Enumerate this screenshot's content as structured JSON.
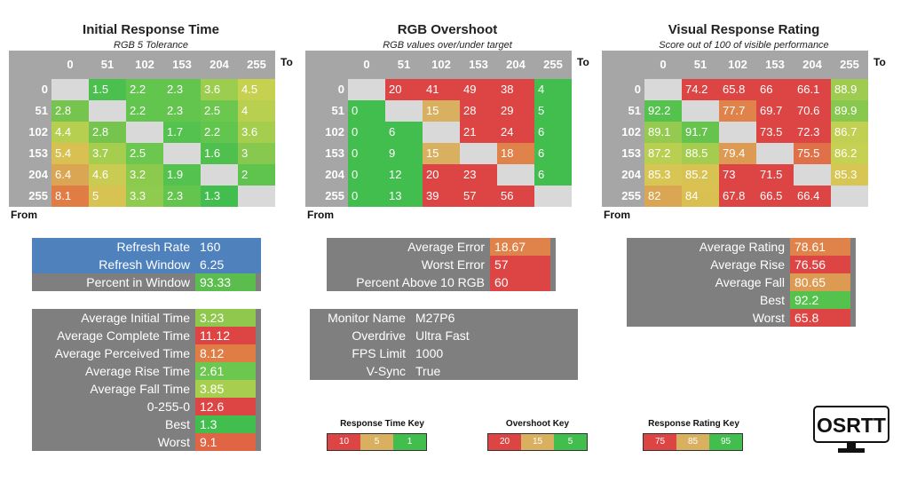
{
  "heatmaps": [
    {
      "title": "Initial Response Time",
      "subtitle": "RGB 5 Tolerance",
      "to_label": "To",
      "from_label": "From",
      "col_headers": [
        "0",
        "51",
        "102",
        "153",
        "204",
        "255"
      ],
      "row_headers": [
        "0",
        "51",
        "102",
        "153",
        "204",
        "255"
      ],
      "cells": [
        [
          null,
          "1.5",
          "2.2",
          "2.3",
          "3.6",
          "4.5"
        ],
        [
          "2.8",
          null,
          "2.2",
          "2.3",
          "2.5",
          "4"
        ],
        [
          "4.4",
          "2.8",
          null,
          "1.7",
          "2.2",
          "3.6"
        ],
        [
          "5.4",
          "3.7",
          "2.5",
          null,
          "1.6",
          "3"
        ],
        [
          "6.4",
          "4.6",
          "3.2",
          "1.9",
          null,
          "2"
        ],
        [
          "8.1",
          "5",
          "3.3",
          "2.3",
          "1.3",
          null
        ]
      ],
      "colors": [
        [
          "#d9d9d9",
          "#4cc04e",
          "#61c54e",
          "#63c54e",
          "#9ccd4f",
          "#c7d150"
        ],
        [
          "#74c44e",
          null,
          "#61c54e",
          "#63c54e",
          "#6cc74e",
          "#b9cf50"
        ],
        [
          "#b6cf50",
          "#74c44e",
          null,
          "#53c24e",
          "#61c54e",
          "#a5ce4f"
        ],
        [
          "#d8c052",
          "#a5ce4f",
          "#6cc74e",
          null,
          "#4fc04e",
          "#87c94e"
        ],
        [
          "#dba653",
          "#c9cb52",
          "#8cca4e",
          "#54c24e",
          null,
          "#5ec44e"
        ],
        [
          "#e07d45",
          "#d6c352",
          "#8fcb4e",
          "#63c54e",
          "#42be4e",
          "#d9d9d9"
        ]
      ]
    },
    {
      "title": "RGB Overshoot",
      "subtitle": "RGB values over/under target",
      "to_label": "To",
      "from_label": "From",
      "col_headers": [
        "0",
        "51",
        "102",
        "153",
        "204",
        "255"
      ],
      "row_headers": [
        "0",
        "51",
        "102",
        "153",
        "204",
        "255"
      ],
      "cells": [
        [
          null,
          "20",
          "41",
          "49",
          "38",
          "4"
        ],
        [
          "0",
          null,
          "15",
          "28",
          "29",
          "5"
        ],
        [
          "0",
          "6",
          null,
          "21",
          "24",
          "6"
        ],
        [
          "0",
          "9",
          "15",
          null,
          "18",
          "6"
        ],
        [
          "0",
          "12",
          "20",
          "23",
          null,
          "6"
        ],
        [
          "0",
          "13",
          "39",
          "57",
          "56",
          null
        ]
      ],
      "colors": [
        [
          "#d9d9d9",
          "#dd4444",
          "#dd4444",
          "#dd4444",
          "#dd4444",
          "#42be4e"
        ],
        [
          "#42be4e",
          null,
          "#d8b060",
          "#dd4444",
          "#dd4444",
          "#42be4e"
        ],
        [
          "#42be4e",
          "#42be4e",
          null,
          "#dd4444",
          "#dd4444",
          "#42be4e"
        ],
        [
          "#42be4e",
          "#42be4e",
          "#d8b060",
          null,
          "#e0834a",
          "#42be4e"
        ],
        [
          "#42be4e",
          "#42be4e",
          "#dd4444",
          "#dd4444",
          null,
          "#42be4e"
        ],
        [
          "#42be4e",
          "#42be4e",
          "#dd4444",
          "#dd4444",
          "#dd4444",
          "#d9d9d9"
        ]
      ]
    },
    {
      "title": "Visual Response Rating",
      "subtitle": "Score out of 100 of visible performance",
      "to_label": "To",
      "from_label": "From",
      "col_headers": [
        "0",
        "51",
        "102",
        "153",
        "204",
        "255"
      ],
      "row_headers": [
        "0",
        "51",
        "102",
        "153",
        "204",
        "255"
      ],
      "cells": [
        [
          null,
          "74.2",
          "65.8",
          "66",
          "66.1",
          "88.9"
        ],
        [
          "92.2",
          null,
          "77.7",
          "69.7",
          "70.6",
          "89.9"
        ],
        [
          "89.1",
          "91.7",
          null,
          "73.5",
          "72.3",
          "86.7"
        ],
        [
          "87.2",
          "88.5",
          "79.4",
          null,
          "75.5",
          "86.2"
        ],
        [
          "85.3",
          "85.2",
          "73",
          "71.5",
          null,
          "85.3"
        ],
        [
          "82",
          "84",
          "67.8",
          "66.5",
          "66.4",
          null
        ]
      ],
      "colors": [
        [
          "#d9d9d9",
          "#dd4444",
          "#dd4444",
          "#dd4444",
          "#dd4444",
          "#9fcc50"
        ],
        [
          "#55c24e",
          null,
          "#e0834a",
          "#dd4444",
          "#dd4444",
          "#88c84e"
        ],
        [
          "#93ca4f",
          "#66c44e",
          null,
          "#dd4444",
          "#dd4444",
          "#c1cf52"
        ],
        [
          "#b9cf52",
          "#a4cd50",
          "#dd9a52",
          null,
          "#e07048",
          "#c6d052"
        ],
        [
          "#d7c653",
          "#d8c352",
          "#dd4444",
          "#dd4444",
          null,
          "#d7c653"
        ],
        [
          "#dba653",
          "#d9c050",
          "#dd4444",
          "#dd4444",
          "#dd4444",
          "#d9d9d9"
        ]
      ]
    }
  ],
  "panels": {
    "refresh": {
      "rows": [
        {
          "label": "Refresh Rate",
          "value": "160",
          "bg": "#4f81bd",
          "value_bg": "#4f81bd"
        },
        {
          "label": "Refresh Window",
          "value": "6.25",
          "bg": "#4f81bd",
          "value_bg": "#4f81bd"
        },
        {
          "label": "Percent in Window",
          "value": "93.33",
          "bg": "#7f7f7f",
          "value_bg": "#5bbd4e"
        }
      ]
    },
    "times": {
      "rows": [
        {
          "label": "Average Initial Time",
          "value": "3.23",
          "value_bg": "#90c84e"
        },
        {
          "label": "Average Complete Time",
          "value": "11.12",
          "value_bg": "#dd4444"
        },
        {
          "label": "Average Perceived Time",
          "value": "8.12",
          "value_bg": "#e07d45"
        },
        {
          "label": "Average Rise Time",
          "value": "2.61",
          "value_bg": "#6cc74e"
        },
        {
          "label": "Average Fall Time",
          "value": "3.85",
          "value_bg": "#a8ce50"
        },
        {
          "label": "0-255-0",
          "value": "12.6",
          "value_bg": "#dd4444"
        },
        {
          "label": "Best",
          "value": "1.3",
          "value_bg": "#42be4e"
        },
        {
          "label": "Worst",
          "value": "9.1",
          "value_bg": "#e06545"
        }
      ]
    },
    "overshoot": {
      "rows": [
        {
          "label": "Average Error",
          "value": "18.67",
          "value_bg": "#e0834a"
        },
        {
          "label": "Worst Error",
          "value": "57",
          "value_bg": "#dd4444"
        },
        {
          "label": "Percent Above 10 RGB",
          "value": "60",
          "value_bg": "#dd4444"
        }
      ]
    },
    "monitor": {
      "rows": [
        {
          "label": "Monitor Name",
          "value": "M27P6"
        },
        {
          "label": "Overdrive",
          "value": "Ultra Fast"
        },
        {
          "label": "FPS Limit",
          "value": "1000"
        },
        {
          "label": "V-Sync",
          "value": "True"
        }
      ]
    },
    "rating": {
      "rows": [
        {
          "label": "Average Rating",
          "value": "78.61",
          "value_bg": "#e0834a"
        },
        {
          "label": "Average Rise",
          "value": "76.56",
          "value_bg": "#dd4444"
        },
        {
          "label": "Average Fall",
          "value": "80.65",
          "value_bg": "#dd9a52"
        },
        {
          "label": "Best",
          "value": "92.2",
          "value_bg": "#55c24e"
        },
        {
          "label": "Worst",
          "value": "65.8",
          "value_bg": "#dd4444"
        }
      ]
    }
  },
  "keys": [
    {
      "title": "Response Time Key",
      "items": [
        {
          "label": "10",
          "color": "#dd4444"
        },
        {
          "label": "5",
          "color": "#d8b060"
        },
        {
          "label": "1",
          "color": "#42be4e"
        }
      ]
    },
    {
      "title": "Overshoot Key",
      "items": [
        {
          "label": "20",
          "color": "#dd4444"
        },
        {
          "label": "15",
          "color": "#d8b060"
        },
        {
          "label": "5",
          "color": "#42be4e"
        }
      ]
    },
    {
      "title": "Response Rating Key",
      "items": [
        {
          "label": "75",
          "color": "#dd4444"
        },
        {
          "label": "85",
          "color": "#d8b060"
        },
        {
          "label": "95",
          "color": "#42be4e"
        }
      ]
    }
  ],
  "logo": {
    "text": "OSRTT"
  }
}
